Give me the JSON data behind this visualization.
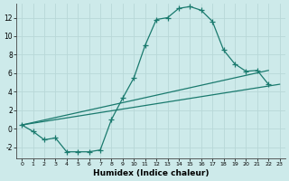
{
  "xlabel": "Humidex (Indice chaleur)",
  "bg_color": "#cdeaea",
  "line_color": "#1a7a6e",
  "grid_color": "#b8d8d8",
  "xlim": [
    -0.5,
    23.5
  ],
  "ylim": [
    -3.2,
    13.5
  ],
  "xticks": [
    0,
    1,
    2,
    3,
    4,
    5,
    6,
    7,
    8,
    9,
    10,
    11,
    12,
    13,
    14,
    15,
    16,
    17,
    18,
    19,
    20,
    21,
    22,
    23
  ],
  "yticks": [
    -2,
    0,
    2,
    4,
    6,
    8,
    10,
    12
  ],
  "line1_x": [
    0,
    1,
    2,
    3,
    4,
    5,
    6,
    7,
    8,
    9,
    10,
    11,
    12,
    13,
    14,
    15,
    16,
    17,
    18,
    19,
    20,
    21,
    22
  ],
  "line1_y": [
    0.4,
    -0.3,
    -1.2,
    -1.0,
    -2.5,
    -2.5,
    -2.5,
    -2.3,
    1.0,
    3.3,
    5.5,
    9.0,
    11.8,
    12.0,
    13.0,
    13.2,
    12.8,
    11.6,
    8.5,
    7.0,
    6.2,
    6.3,
    4.8
  ],
  "line2_x": [
    0,
    23
  ],
  "line2_y": [
    0.4,
    4.8
  ],
  "line3_x": [
    0,
    22
  ],
  "line3_y": [
    0.4,
    6.3
  ]
}
